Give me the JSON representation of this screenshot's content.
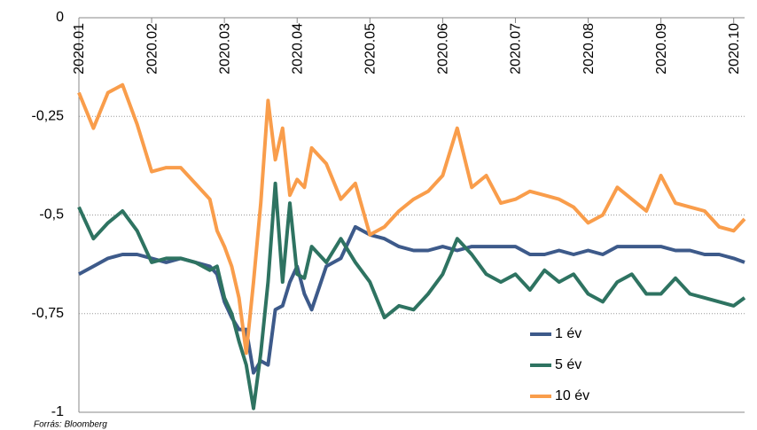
{
  "chart_data": {
    "type": "line",
    "source": "Forrás: Bloomberg",
    "xlim": [
      0,
      9.15
    ],
    "xticks": [
      {
        "value": 0,
        "label": "2020.01"
      },
      {
        "value": 1,
        "label": "2020.02"
      },
      {
        "value": 2,
        "label": "2020.03"
      },
      {
        "value": 3,
        "label": "2020.04"
      },
      {
        "value": 4,
        "label": "2020.05"
      },
      {
        "value": 5,
        "label": "2020.06"
      },
      {
        "value": 6,
        "label": "2020.07"
      },
      {
        "value": 7,
        "label": "2020.08"
      },
      {
        "value": 8,
        "label": "2020.09"
      },
      {
        "value": 9,
        "label": "2020.10"
      }
    ],
    "ylim": [
      -1,
      0
    ],
    "yticks": [
      0,
      {
        "value": -0.25,
        "label": "-0,25"
      },
      {
        "value": -0.5,
        "label": "-0,5"
      },
      {
        "value": -0.75,
        "label": "-0,75"
      },
      -1
    ],
    "grid": true,
    "legend": "lower right",
    "x": [
      0,
      0.2,
      0.4,
      0.6,
      0.8,
      1.0,
      1.2,
      1.4,
      1.6,
      1.8,
      1.9,
      2.0,
      2.1,
      2.2,
      2.3,
      2.4,
      2.5,
      2.6,
      2.7,
      2.8,
      2.9,
      3.0,
      3.1,
      3.2,
      3.4,
      3.6,
      3.8,
      4.0,
      4.2,
      4.4,
      4.6,
      4.8,
      5.0,
      5.2,
      5.4,
      5.6,
      5.8,
      6.0,
      6.2,
      6.4,
      6.6,
      6.8,
      7.0,
      7.2,
      7.4,
      7.6,
      7.8,
      8.0,
      8.2,
      8.4,
      8.6,
      8.8,
      9.0,
      9.15
    ],
    "series": [
      {
        "name": "1 év",
        "color": "#3d5a8a",
        "values": [
          -0.65,
          -0.63,
          -0.61,
          -0.6,
          -0.6,
          -0.61,
          -0.62,
          -0.61,
          -0.62,
          -0.63,
          -0.65,
          -0.72,
          -0.76,
          -0.79,
          -0.79,
          -0.9,
          -0.87,
          -0.88,
          -0.74,
          -0.73,
          -0.67,
          -0.63,
          -0.7,
          -0.74,
          -0.63,
          -0.61,
          -0.53,
          -0.55,
          -0.56,
          -0.58,
          -0.59,
          -0.59,
          -0.58,
          -0.59,
          -0.58,
          -0.58,
          -0.58,
          -0.58,
          -0.6,
          -0.6,
          -0.59,
          -0.6,
          -0.59,
          -0.6,
          -0.58,
          -0.58,
          -0.58,
          -0.58,
          -0.59,
          -0.59,
          -0.6,
          -0.6,
          -0.61,
          -0.62
        ]
      },
      {
        "name": "5 év",
        "color": "#2e7361",
        "values": [
          -0.48,
          -0.56,
          -0.52,
          -0.49,
          -0.54,
          -0.62,
          -0.61,
          -0.61,
          -0.62,
          -0.64,
          -0.63,
          -0.71,
          -0.75,
          -0.82,
          -0.88,
          -0.99,
          -0.85,
          -0.67,
          -0.42,
          -0.67,
          -0.47,
          -0.65,
          -0.66,
          -0.58,
          -0.62,
          -0.56,
          -0.62,
          -0.67,
          -0.76,
          -0.73,
          -0.74,
          -0.7,
          -0.65,
          -0.56,
          -0.6,
          -0.65,
          -0.67,
          -0.65,
          -0.69,
          -0.64,
          -0.67,
          -0.65,
          -0.7,
          -0.72,
          -0.67,
          -0.65,
          -0.7,
          -0.7,
          -0.66,
          -0.7,
          -0.71,
          -0.72,
          -0.73,
          -0.71
        ]
      },
      {
        "name": "10 év",
        "color": "#f99d4b",
        "values": [
          -0.19,
          -0.28,
          -0.19,
          -0.17,
          -0.27,
          -0.39,
          -0.38,
          -0.38,
          -0.42,
          -0.46,
          -0.54,
          -0.58,
          -0.63,
          -0.71,
          -0.85,
          -0.67,
          -0.47,
          -0.21,
          -0.36,
          -0.28,
          -0.45,
          -0.41,
          -0.43,
          -0.33,
          -0.37,
          -0.46,
          -0.42,
          -0.55,
          -0.53,
          -0.49,
          -0.46,
          -0.44,
          -0.4,
          -0.28,
          -0.43,
          -0.4,
          -0.47,
          -0.46,
          -0.44,
          -0.45,
          -0.46,
          -0.48,
          -0.52,
          -0.5,
          -0.43,
          -0.46,
          -0.49,
          -0.4,
          -0.47,
          -0.48,
          -0.49,
          -0.53,
          -0.54,
          -0.51
        ]
      }
    ]
  }
}
